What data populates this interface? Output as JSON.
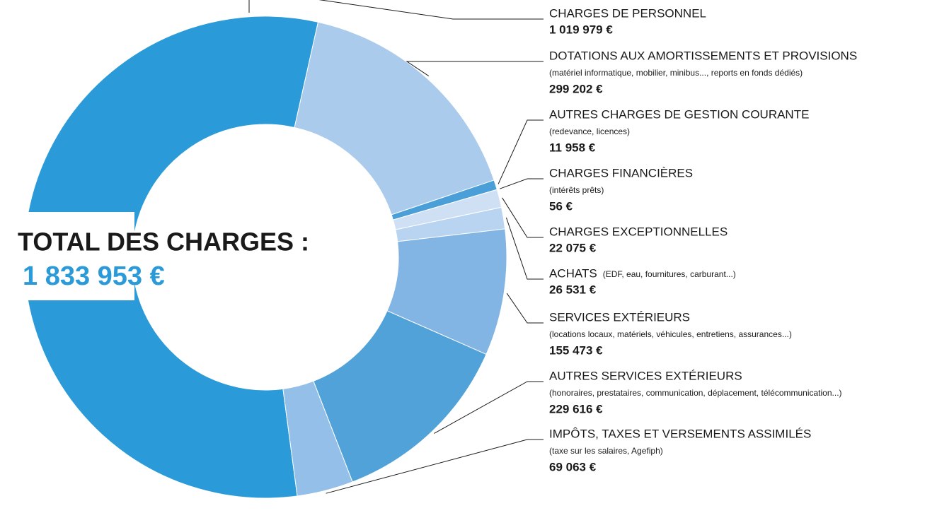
{
  "chart_data": {
    "type": "donut",
    "center_title": "TOTAL DES CHARGES :",
    "center_value": "1 833 953 €",
    "categories": [
      "CHARGES DE PERSONNEL",
      "DOTATIONS AUX AMORTISSEMENTS ET PROVISIONS",
      "AUTRES CHARGES DE GESTION COURANTE",
      "CHARGES FINANCIÈRES",
      "CHARGES EXCEPTIONNELLES",
      "ACHATS",
      "SERVICES EXTÉRIEURS",
      "AUTRES SERVICES EXTÉRIEURS",
      "IMPÔTS, TAXES ET VERSEMENTS ASSIMILÉS"
    ],
    "details": [
      null,
      "(matériel informatique, mobilier, minibus..., reports en fonds dédiés)",
      "(redevance, licences)",
      "(intérêts prêts)",
      null,
      "(EDF, eau, fournitures, carburant...)",
      "(locations locaux, matériels, véhicules, entretiens, assurances...)",
      "(honoraires, prestataires, communication, déplacement, télécommunication...)",
      "(taxe sur les salaires, Agefiph)"
    ],
    "values": [
      1019979,
      299202,
      11958,
      56,
      22075,
      26531,
      155473,
      229616,
      69063
    ],
    "value_labels": [
      "1 019 979 €",
      "299 202 €",
      "11 958 €",
      "56 €",
      "22 075 €",
      "26 531 €",
      "155 473 €",
      "229 616 €",
      "69 063 €"
    ],
    "colors": [
      "#2a9ad8",
      "#aacbec",
      "#4a9fd8",
      "#2a7fc0",
      "#cfe0f4",
      "#b8d4f0",
      "#82b4e4",
      "#52a2da",
      "#94bfe8"
    ]
  }
}
